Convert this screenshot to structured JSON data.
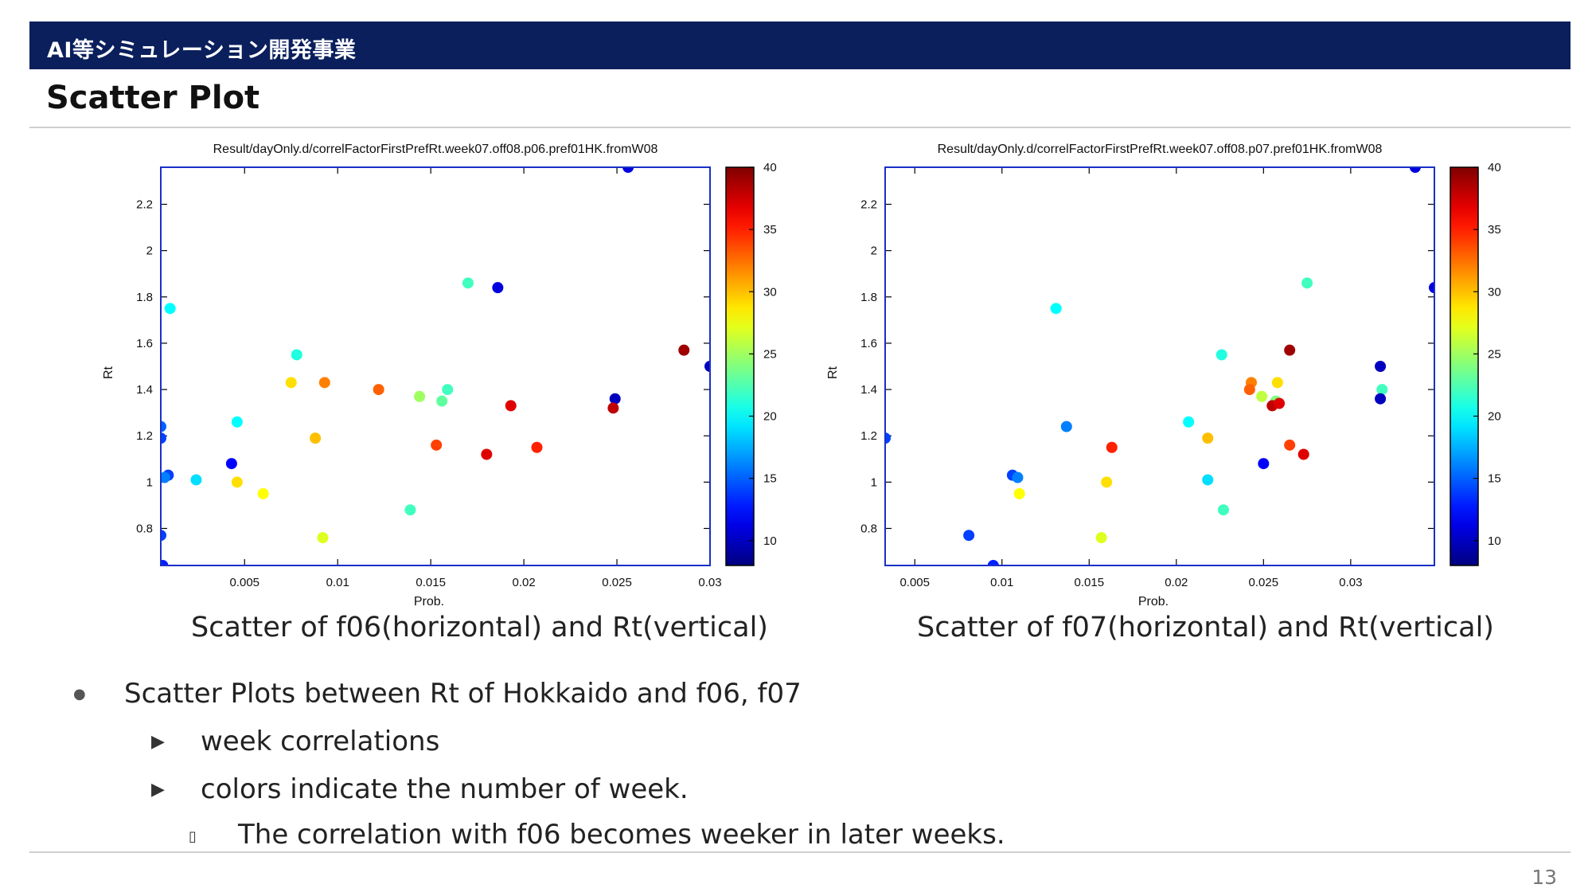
{
  "header": {
    "banner_text": "AI等シミュレーション開発事業",
    "page_title": "Scatter Plot"
  },
  "colors": {
    "banner": "#0a1f5c",
    "frame": "#1a2fc8"
  },
  "chart_data": [
    {
      "type": "scatter",
      "title": "Result/dayOnly.d/correlFactorFirstPrefRt.week07.off08.p06.pref01HK.fromW08",
      "xlabel": "Prob.",
      "ylabel": "Rt",
      "xlim": [
        0.0005,
        0.03
      ],
      "ylim": [
        0.64,
        2.36
      ],
      "xticks": [
        "0.005",
        "0.01",
        "0.015",
        "0.02",
        "0.025",
        "0.03"
      ],
      "yticks": [
        "0.8",
        "1",
        "1.2",
        "1.4",
        "1.6",
        "1.8",
        "2",
        "2.2"
      ],
      "colorbar": {
        "min": 8,
        "max": 40,
        "ticks": [
          "10",
          "15",
          "20",
          "25",
          "30",
          "35",
          "40"
        ],
        "label": ""
      },
      "points": [
        {
          "x": 0.0256,
          "y": 2.36,
          "c": 11
        },
        {
          "x": 0.0186,
          "y": 1.84,
          "c": 11
        },
        {
          "x": 0.017,
          "y": 1.86,
          "c": 22
        },
        {
          "x": 0.001,
          "y": 1.75,
          "c": 20
        },
        {
          "x": 0.0078,
          "y": 1.55,
          "c": 21
        },
        {
          "x": 0.0286,
          "y": 1.57,
          "c": 39
        },
        {
          "x": 0.03,
          "y": 1.5,
          "c": 10
        },
        {
          "x": 0.0075,
          "y": 1.43,
          "c": 29
        },
        {
          "x": 0.0093,
          "y": 1.43,
          "c": 32
        },
        {
          "x": 0.0122,
          "y": 1.4,
          "c": 33
        },
        {
          "x": 0.0159,
          "y": 1.4,
          "c": 22
        },
        {
          "x": 0.0144,
          "y": 1.37,
          "c": 25
        },
        {
          "x": 0.0156,
          "y": 1.35,
          "c": 23
        },
        {
          "x": 0.0193,
          "y": 1.33,
          "c": 37
        },
        {
          "x": 0.0249,
          "y": 1.36,
          "c": 10
        },
        {
          "x": 0.0248,
          "y": 1.32,
          "c": 38
        },
        {
          "x": 0.0005,
          "y": 1.24,
          "c": 15
        },
        {
          "x": 0.0005,
          "y": 1.19,
          "c": 14
        },
        {
          "x": 0.0046,
          "y": 1.26,
          "c": 20
        },
        {
          "x": 0.0088,
          "y": 1.19,
          "c": 30
        },
        {
          "x": 0.0153,
          "y": 1.16,
          "c": 34
        },
        {
          "x": 0.018,
          "y": 1.12,
          "c": 37
        },
        {
          "x": 0.0207,
          "y": 1.15,
          "c": 35
        },
        {
          "x": 0.0043,
          "y": 1.08,
          "c": 12
        },
        {
          "x": 0.0009,
          "y": 1.03,
          "c": 14
        },
        {
          "x": 0.0007,
          "y": 1.02,
          "c": 16
        },
        {
          "x": 0.0024,
          "y": 1.01,
          "c": 19
        },
        {
          "x": 0.0046,
          "y": 1.0,
          "c": 29
        },
        {
          "x": 0.006,
          "y": 0.95,
          "c": 28
        },
        {
          "x": 0.0139,
          "y": 0.88,
          "c": 22
        },
        {
          "x": 0.0092,
          "y": 0.76,
          "c": 27
        },
        {
          "x": 0.0005,
          "y": 0.77,
          "c": 14
        },
        {
          "x": 0.0006,
          "y": 0.64,
          "c": 13
        }
      ]
    },
    {
      "type": "scatter",
      "title": "Result/dayOnly.d/correlFactorFirstPrefRt.week07.off08.p07.pref01HK.fromW08",
      "xlabel": "Prob.",
      "ylabel": "Rt",
      "xlim": [
        0.0033,
        0.0348
      ],
      "ylim": [
        0.64,
        2.36
      ],
      "xticks": [
        "0.005",
        "0.01",
        "0.015",
        "0.02",
        "0.025",
        "0.03"
      ],
      "yticks": [
        "0.8",
        "1",
        "1.2",
        "1.4",
        "1.6",
        "1.8",
        "2",
        "2.2"
      ],
      "colorbar": {
        "min": 8,
        "max": 40,
        "ticks": [
          "10",
          "15",
          "20",
          "25",
          "30",
          "35",
          "40"
        ],
        "label": ""
      },
      "points": [
        {
          "x": 0.0337,
          "y": 2.36,
          "c": 11
        },
        {
          "x": 0.0348,
          "y": 1.84,
          "c": 11
        },
        {
          "x": 0.0131,
          "y": 1.75,
          "c": 20
        },
        {
          "x": 0.0275,
          "y": 1.86,
          "c": 22
        },
        {
          "x": 0.0226,
          "y": 1.55,
          "c": 21
        },
        {
          "x": 0.0265,
          "y": 1.57,
          "c": 39
        },
        {
          "x": 0.0317,
          "y": 1.5,
          "c": 10
        },
        {
          "x": 0.0243,
          "y": 1.43,
          "c": 32
        },
        {
          "x": 0.0242,
          "y": 1.4,
          "c": 33
        },
        {
          "x": 0.0258,
          "y": 1.43,
          "c": 29
        },
        {
          "x": 0.0249,
          "y": 1.37,
          "c": 26
        },
        {
          "x": 0.0257,
          "y": 1.35,
          "c": 24
        },
        {
          "x": 0.0255,
          "y": 1.33,
          "c": 38
        },
        {
          "x": 0.0259,
          "y": 1.34,
          "c": 37
        },
        {
          "x": 0.0318,
          "y": 1.4,
          "c": 22
        },
        {
          "x": 0.0317,
          "y": 1.36,
          "c": 10
        },
        {
          "x": 0.0137,
          "y": 1.24,
          "c": 16
        },
        {
          "x": 0.0207,
          "y": 1.26,
          "c": 20
        },
        {
          "x": 0.0033,
          "y": 1.19,
          "c": 14
        },
        {
          "x": 0.0218,
          "y": 1.19,
          "c": 30
        },
        {
          "x": 0.0163,
          "y": 1.15,
          "c": 35
        },
        {
          "x": 0.0265,
          "y": 1.16,
          "c": 34
        },
        {
          "x": 0.0273,
          "y": 1.12,
          "c": 37
        },
        {
          "x": 0.025,
          "y": 1.08,
          "c": 12
        },
        {
          "x": 0.0106,
          "y": 1.03,
          "c": 14
        },
        {
          "x": 0.0109,
          "y": 1.02,
          "c": 16
        },
        {
          "x": 0.0218,
          "y": 1.01,
          "c": 19
        },
        {
          "x": 0.016,
          "y": 1.0,
          "c": 29
        },
        {
          "x": 0.011,
          "y": 0.95,
          "c": 28
        },
        {
          "x": 0.0227,
          "y": 0.88,
          "c": 22
        },
        {
          "x": 0.0157,
          "y": 0.76,
          "c": 27
        },
        {
          "x": 0.0081,
          "y": 0.77,
          "c": 14
        },
        {
          "x": 0.0095,
          "y": 0.64,
          "c": 13
        }
      ]
    }
  ],
  "captions": [
    "Scatter of f06(horizontal) and Rt(vertical)",
    "Scatter of f07(horizontal) and Rt(vertical)"
  ],
  "bullets": {
    "level1": {
      "marker": "●",
      "text": "Scatter Plots between Rt of Hokkaido and f06, f07"
    },
    "level2": [
      {
        "marker": "▶",
        "text": "week correlations"
      },
      {
        "marker": "▶",
        "text": "colors indicate the number of week."
      }
    ],
    "level3": {
      "marker": "▯",
      "text": "The correlation with f06 becomes weeker in later weeks."
    }
  },
  "footer": {
    "page_number": "13"
  }
}
